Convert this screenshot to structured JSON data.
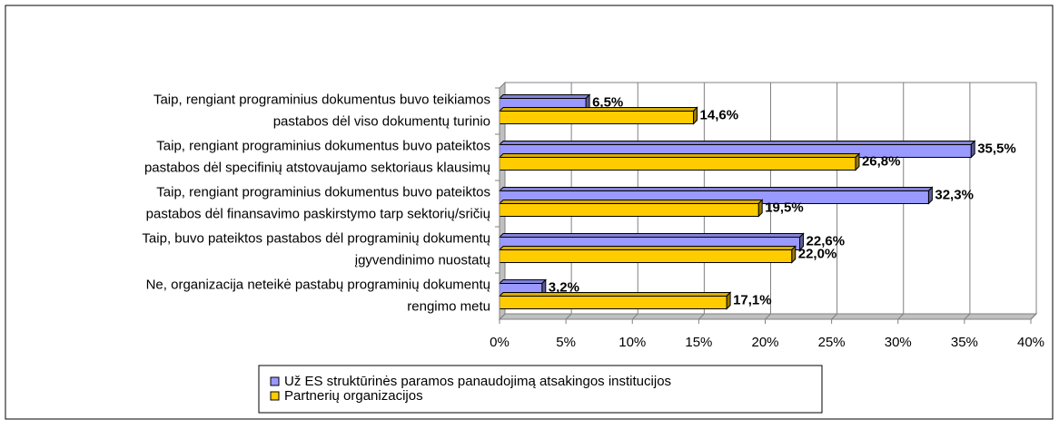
{
  "chart_data": {
    "type": "bar",
    "categories": [
      [
        "Taip, rengiant programinius dokumentus buvo teikiamos",
        "pastabos dėl viso dokumentų turinio"
      ],
      [
        "Taip, rengiant programinius dokumentus buvo pateiktos",
        "pastabos dėl specifinių atstovaujamo sektoriaus klausimų"
      ],
      [
        "Taip, rengiant programinius dokumentus buvo pateiktos",
        "pastabos dėl finansavimo paskirstymo tarp sektorių/sričių"
      ],
      [
        "Taip, buvo pateiktos pastabos dėl programinių dokumentų",
        "įgyvendinimo nuostatų"
      ],
      [
        "Ne, organizacija neteikė pastabų programinių dokumentų",
        "rengimo metu"
      ]
    ],
    "series": [
      {
        "name": "Už ES struktūrinės paramos panaudojimą atsakingos institucijos",
        "color": "#9999ff",
        "values": [
          6.5,
          35.5,
          32.3,
          22.6,
          3.2
        ],
        "value_labels": [
          "6,5%",
          "35,5%",
          "32,3%",
          "22,6%",
          "3,2%"
        ]
      },
      {
        "name": "Partnerių organizacijos",
        "color": "#ffcc00",
        "values": [
          14.6,
          26.8,
          19.5,
          22.0,
          17.1
        ],
        "value_labels": [
          "14,6%",
          "26,8%",
          "19,5%",
          "22,0%",
          "17,1%"
        ]
      }
    ],
    "xlim": [
      0,
      40
    ],
    "xticks": [
      {
        "value": 0,
        "label": "0%"
      },
      {
        "value": 5,
        "label": "5%"
      },
      {
        "value": 10,
        "label": "10%"
      },
      {
        "value": 15,
        "label": "15%"
      },
      {
        "value": 20,
        "label": "20%"
      },
      {
        "value": 25,
        "label": "25%"
      },
      {
        "value": 30,
        "label": "30%"
      },
      {
        "value": 35,
        "label": "35%"
      },
      {
        "value": 40,
        "label": "40%"
      }
    ],
    "grid": true
  }
}
